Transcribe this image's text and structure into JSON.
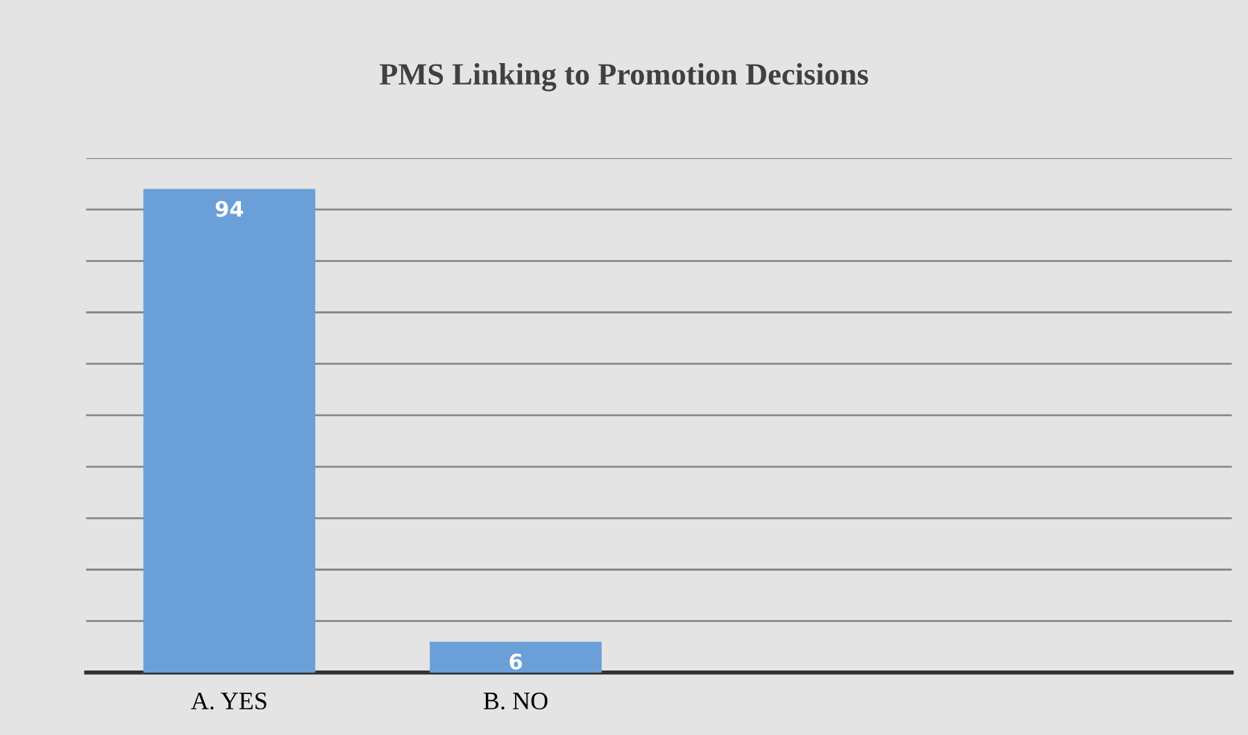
{
  "chart_data": {
    "type": "bar",
    "title": "PMS Linking to Promotion Decisions",
    "categories": [
      "A. YES",
      "B. NO",
      null,
      null
    ],
    "values": [
      94,
      6,
      null,
      null
    ],
    "color": "#6a9fd8",
    "data_labels": true,
    "ylim": [
      0,
      100
    ],
    "yticks": [
      {
        "value": 10,
        "label": null
      },
      {
        "value": 20,
        "label": null
      },
      {
        "value": 30,
        "label": null
      },
      {
        "value": 40,
        "label": null
      },
      {
        "value": 50,
        "label": null
      },
      {
        "value": 60,
        "label": null
      },
      {
        "value": 70,
        "label": null
      },
      {
        "value": 80,
        "label": null
      },
      {
        "value": 90,
        "label": null
      },
      {
        "value": 100,
        "label": null
      }
    ],
    "grid": "y",
    "tick_labels": "x"
  }
}
